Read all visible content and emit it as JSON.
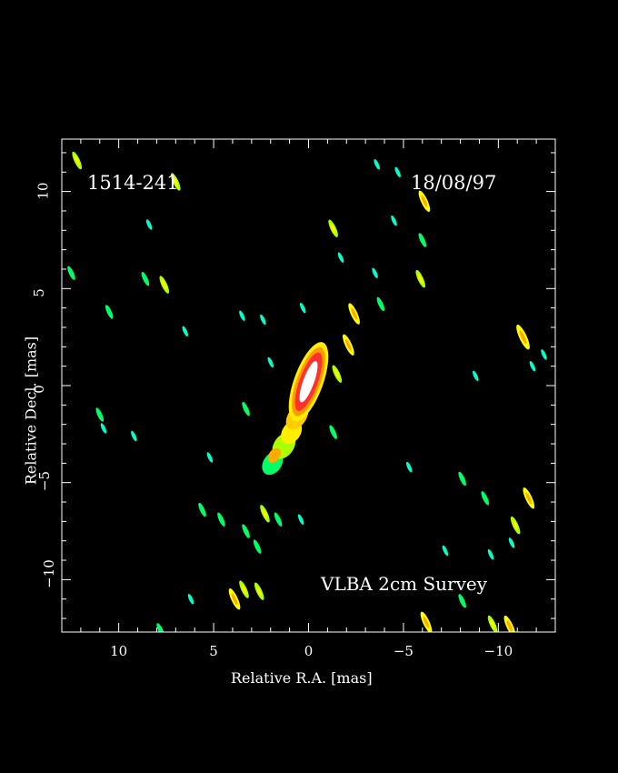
{
  "image": {
    "source_label": "1514-241",
    "date_label": "18/08/97",
    "survey_label": "VLBA 2cm Survey",
    "xlabel": "Relative R.A. [mas]",
    "ylabel": "Relative Decl. [mas]",
    "colormap": [
      "#0000ff",
      "#00aaff",
      "#00ffcc",
      "#00ff66",
      "#aaff00",
      "#ffff00",
      "#ffaa00",
      "#ff4400",
      "#ff0000",
      "#ffffff"
    ],
    "background": "#000000"
  },
  "axes": {
    "x_range": [
      13,
      -13
    ],
    "y_range": [
      -12.7,
      12.7
    ],
    "x_ticks": [
      10,
      5,
      0,
      -5,
      -10
    ],
    "y_ticks": [
      -10,
      -5,
      0,
      5,
      10
    ],
    "x_tick_labels": [
      "10",
      "5",
      "0",
      "−5",
      "−10"
    ],
    "y_tick_labels": [
      "−10",
      "−5",
      "0",
      "5",
      "10"
    ]
  },
  "features": {
    "core": [
      {
        "x": 0.0,
        "y": 0.2,
        "level": 9
      },
      {
        "x": -0.6,
        "y": -1.2,
        "level": 6
      },
      {
        "x": 1.0,
        "y": -2.8,
        "level": 5
      },
      {
        "x": 1.8,
        "y": -3.6,
        "level": 4
      }
    ],
    "blobs": [
      {
        "x": 12.2,
        "y": 11.6,
        "level": 3
      },
      {
        "x": 7.0,
        "y": 10.5,
        "level": 3
      },
      {
        "x": -6.1,
        "y": 9.5,
        "level": 4
      },
      {
        "x": -1.3,
        "y": 8.1,
        "level": 3
      },
      {
        "x": -6.0,
        "y": 7.5,
        "level": 2
      },
      {
        "x": -5.9,
        "y": 5.5,
        "level": 3
      },
      {
        "x": 12.5,
        "y": 5.8,
        "level": 2
      },
      {
        "x": 10.5,
        "y": 3.8,
        "level": 2
      },
      {
        "x": 8.6,
        "y": 5.5,
        "level": 2
      },
      {
        "x": 7.6,
        "y": 5.2,
        "level": 3
      },
      {
        "x": -2.4,
        "y": 3.7,
        "level": 4
      },
      {
        "x": -2.1,
        "y": 2.1,
        "level": 4
      },
      {
        "x": -1.5,
        "y": 0.6,
        "level": 3
      },
      {
        "x": -11.3,
        "y": 2.5,
        "level": 5
      },
      {
        "x": 11.0,
        "y": -1.5,
        "level": 2
      },
      {
        "x": 3.3,
        "y": -1.2,
        "level": 2
      },
      {
        "x": -1.3,
        "y": -2.4,
        "level": 2
      },
      {
        "x": -8.1,
        "y": -4.8,
        "level": 2
      },
      {
        "x": -9.3,
        "y": -5.8,
        "level": 2
      },
      {
        "x": -11.6,
        "y": -5.8,
        "level": 4
      },
      {
        "x": -10.9,
        "y": -7.2,
        "level": 3
      },
      {
        "x": 5.6,
        "y": -6.4,
        "level": 2
      },
      {
        "x": 4.6,
        "y": -6.9,
        "level": 2
      },
      {
        "x": 2.3,
        "y": -6.6,
        "level": 3
      },
      {
        "x": 1.6,
        "y": -6.9,
        "level": 2
      },
      {
        "x": 3.3,
        "y": -7.5,
        "level": 2
      },
      {
        "x": 2.7,
        "y": -8.3,
        "level": 2
      },
      {
        "x": 3.4,
        "y": -10.5,
        "level": 3
      },
      {
        "x": 2.6,
        "y": -10.6,
        "level": 3
      },
      {
        "x": 3.9,
        "y": -11.0,
        "level": 4
      },
      {
        "x": 7.8,
        "y": -12.6,
        "level": 2
      },
      {
        "x": -6.2,
        "y": -12.2,
        "level": 4
      },
      {
        "x": -9.7,
        "y": -12.3,
        "level": 3
      },
      {
        "x": -10.6,
        "y": -12.4,
        "level": 4
      },
      {
        "x": -8.1,
        "y": -11.1,
        "level": 2
      },
      {
        "x": -3.8,
        "y": 4.2,
        "level": 2
      },
      {
        "x": -1.7,
        "y": 6.6,
        "level": 1
      },
      {
        "x": 0.3,
        "y": 4.0,
        "level": 1
      },
      {
        "x": 2.4,
        "y": 3.4,
        "level": 1
      },
      {
        "x": 2.0,
        "y": 1.2,
        "level": 1
      },
      {
        "x": -4.5,
        "y": 8.5,
        "level": 1
      },
      {
        "x": -3.5,
        "y": 5.8,
        "level": 1
      },
      {
        "x": 3.5,
        "y": 3.6,
        "level": 1
      },
      {
        "x": 6.5,
        "y": 2.8,
        "level": 1
      },
      {
        "x": -8.8,
        "y": 0.5,
        "level": 1
      },
      {
        "x": -11.8,
        "y": 1.0,
        "level": 1
      },
      {
        "x": -12.4,
        "y": 1.6,
        "level": 1
      },
      {
        "x": 5.2,
        "y": -3.7,
        "level": 1
      },
      {
        "x": -5.3,
        "y": -4.2,
        "level": 1
      },
      {
        "x": -9.6,
        "y": -8.7,
        "level": 1
      },
      {
        "x": -7.2,
        "y": -8.5,
        "level": 1
      },
      {
        "x": 0.4,
        "y": -6.9,
        "level": 1
      },
      {
        "x": 6.2,
        "y": -11.0,
        "level": 1
      },
      {
        "x": -10.7,
        "y": -8.1,
        "level": 1
      },
      {
        "x": -4.7,
        "y": 11.0,
        "level": 1
      },
      {
        "x": -3.6,
        "y": 11.4,
        "level": 1
      },
      {
        "x": 8.4,
        "y": 8.3,
        "level": 1
      },
      {
        "x": 9.2,
        "y": -2.6,
        "level": 1
      },
      {
        "x": 10.8,
        "y": -2.2,
        "level": 1
      }
    ]
  }
}
